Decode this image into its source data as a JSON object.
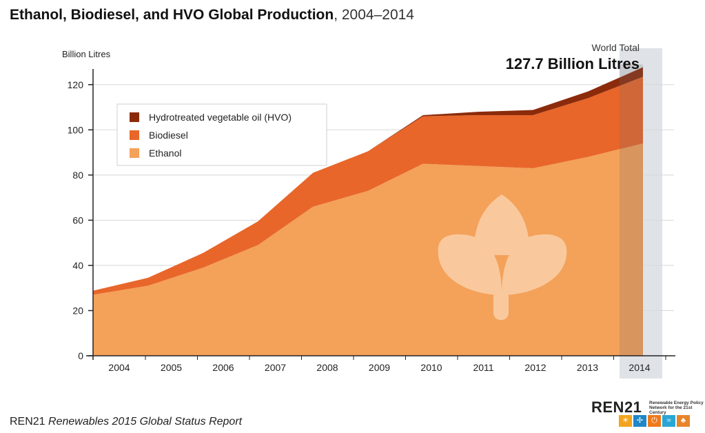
{
  "title": {
    "bold": "Ethanol, Biodiesel, and HVO Global Production",
    "light": ", 2004–2014"
  },
  "footer": {
    "org": "REN21",
    "report": "Renewables 2015 Global Status Report"
  },
  "logo": {
    "name": "REN21",
    "tagline": "Renewable Energy Policy Network for the 21st Century",
    "icons": [
      "sun-icon",
      "wind-turbine-icon",
      "power-icon",
      "water-wave-icon",
      "leaf-icon"
    ],
    "icon_colors": [
      "#f2a41c",
      "#1f86c8",
      "#ef7a1a",
      "#2aa6d6",
      "#e8842a"
    ]
  },
  "colors": {
    "ethanol": "#f4a15a",
    "biodiesel": "#e8662a",
    "hvo": "#8b2b0c",
    "highlight": "#dfe3e7",
    "leaf": "#f9c99d"
  },
  "chart_data": {
    "type": "area",
    "stacked": true,
    "title": "Ethanol, Biodiesel, and HVO Global Production, 2004–2014",
    "ylabel": "Billion Litres",
    "xlabel": "",
    "ylim": [
      0,
      130
    ],
    "yticks": [
      0,
      20,
      40,
      60,
      80,
      100,
      120
    ],
    "categories": [
      "2004",
      "2005",
      "2006",
      "2007",
      "2008",
      "2009",
      "2010",
      "2011",
      "2012",
      "2013",
      "2014"
    ],
    "series": [
      {
        "name": "Ethanol",
        "values": [
          27,
          31,
          39,
          49,
          66,
          73,
          85,
          84,
          83,
          88,
          94
        ]
      },
      {
        "name": "Biodiesel",
        "values": [
          1.8,
          3.5,
          6.5,
          10.5,
          15,
          17.5,
          21,
          22.5,
          23.5,
          26,
          29.5
        ]
      },
      {
        "name": "Hydrotreated vegetable oil (HVO)",
        "values": [
          0,
          0,
          0,
          0,
          0,
          0,
          0.5,
          1.5,
          2.3,
          3,
          4.2
        ]
      }
    ],
    "legend": {
      "position": "top-left",
      "entries": [
        "Hydrotreated vegetable oil (HVO)",
        "Biodiesel",
        "Ethanol"
      ]
    },
    "annotation": {
      "label": "World Total",
      "value": "127.7 Billion Litres",
      "category": "2014"
    },
    "highlight_category": "2014",
    "grid": true
  }
}
